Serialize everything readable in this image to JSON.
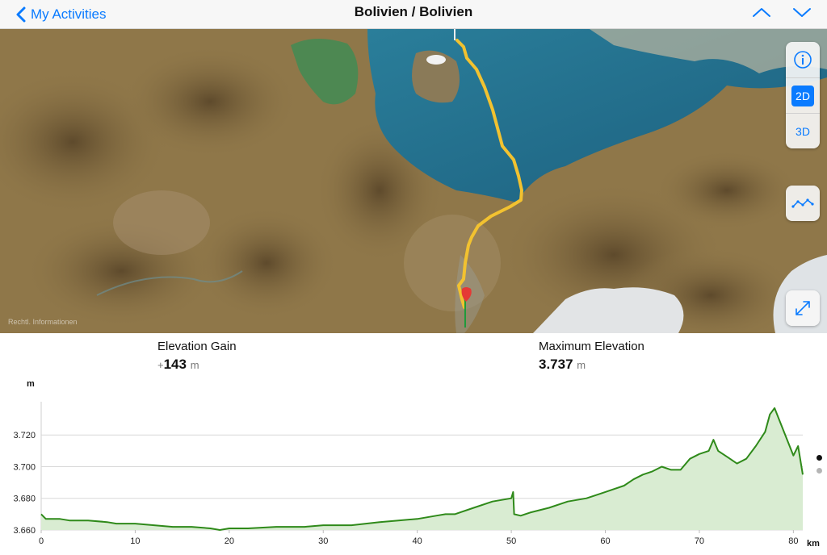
{
  "nav": {
    "back_label": "My Activities",
    "title": "Bolivien / Bolivien"
  },
  "icons": {
    "back": "chevron-left-icon",
    "up": "chevron-up-icon",
    "down": "chevron-down-icon",
    "info": "info-icon",
    "chart_toggle": "elevation-profile-icon",
    "fullscreen": "expand-icon"
  },
  "map": {
    "legal_text": "Rechtl. Informationen",
    "mode_2d": "2D",
    "mode_3d": "3D",
    "active_mode": "2D"
  },
  "stats": {
    "elevation_gain_label": "Elevation Gain",
    "elevation_gain_prefix": "+",
    "elevation_gain_value": "143",
    "elevation_gain_unit": "m",
    "max_elevation_label": "Maximum Elevation",
    "max_elevation_value": "3.737",
    "max_elevation_unit": "m"
  },
  "colors": {
    "accent": "#0a7bff",
    "route": "#f2c230",
    "profile_line": "#2f8a1a",
    "profile_fill": "#d9ecd2",
    "lake": "#236f8e"
  },
  "chart_data": {
    "type": "area",
    "ylabel": "m",
    "xlabel": "km",
    "ylim": [
      3660,
      3741
    ],
    "xlim": [
      0,
      81
    ],
    "ytick_labels": [
      "3.660",
      "3.680",
      "3.700",
      "3.720"
    ],
    "ytick_values": [
      3660,
      3680,
      3700,
      3720
    ],
    "xtick_labels": [
      "0",
      "10",
      "20",
      "30",
      "40",
      "50",
      "60",
      "70",
      "80"
    ],
    "xtick_values": [
      0,
      10,
      20,
      30,
      40,
      50,
      60,
      70,
      80
    ],
    "grid": true,
    "series": [
      {
        "x": [
          0,
          0.5,
          1,
          2,
          3,
          5,
          7,
          8,
          9,
          10,
          12,
          14,
          16,
          18,
          19,
          20,
          22,
          25,
          28,
          30,
          33,
          36,
          38,
          40,
          42,
          43,
          44,
          46,
          48,
          50,
          50.2,
          50.3,
          51,
          52,
          54,
          56,
          58,
          59,
          60,
          62,
          63,
          64,
          65,
          66,
          67,
          68,
          69,
          70,
          71,
          71.5,
          72,
          73,
          74,
          75,
          76,
          77,
          77.5,
          78,
          79,
          80,
          80.5,
          81
        ],
        "y": [
          3670,
          3667,
          3667,
          3667,
          3666,
          3666,
          3665,
          3664,
          3664,
          3664,
          3663,
          3662,
          3662,
          3661,
          3660,
          3661,
          3661,
          3662,
          3662,
          3663,
          3663,
          3665,
          3666,
          3667,
          3669,
          3670,
          3670,
          3674,
          3678,
          3680,
          3684,
          3670,
          3669,
          3671,
          3674,
          3678,
          3680,
          3682,
          3684,
          3688,
          3692,
          3695,
          3697,
          3700,
          3698,
          3698,
          3705,
          3708,
          3710,
          3717,
          3710,
          3706,
          3702,
          3705,
          3713,
          3722,
          3733,
          3737,
          3722,
          3707,
          3713,
          3695
        ]
      }
    ]
  }
}
